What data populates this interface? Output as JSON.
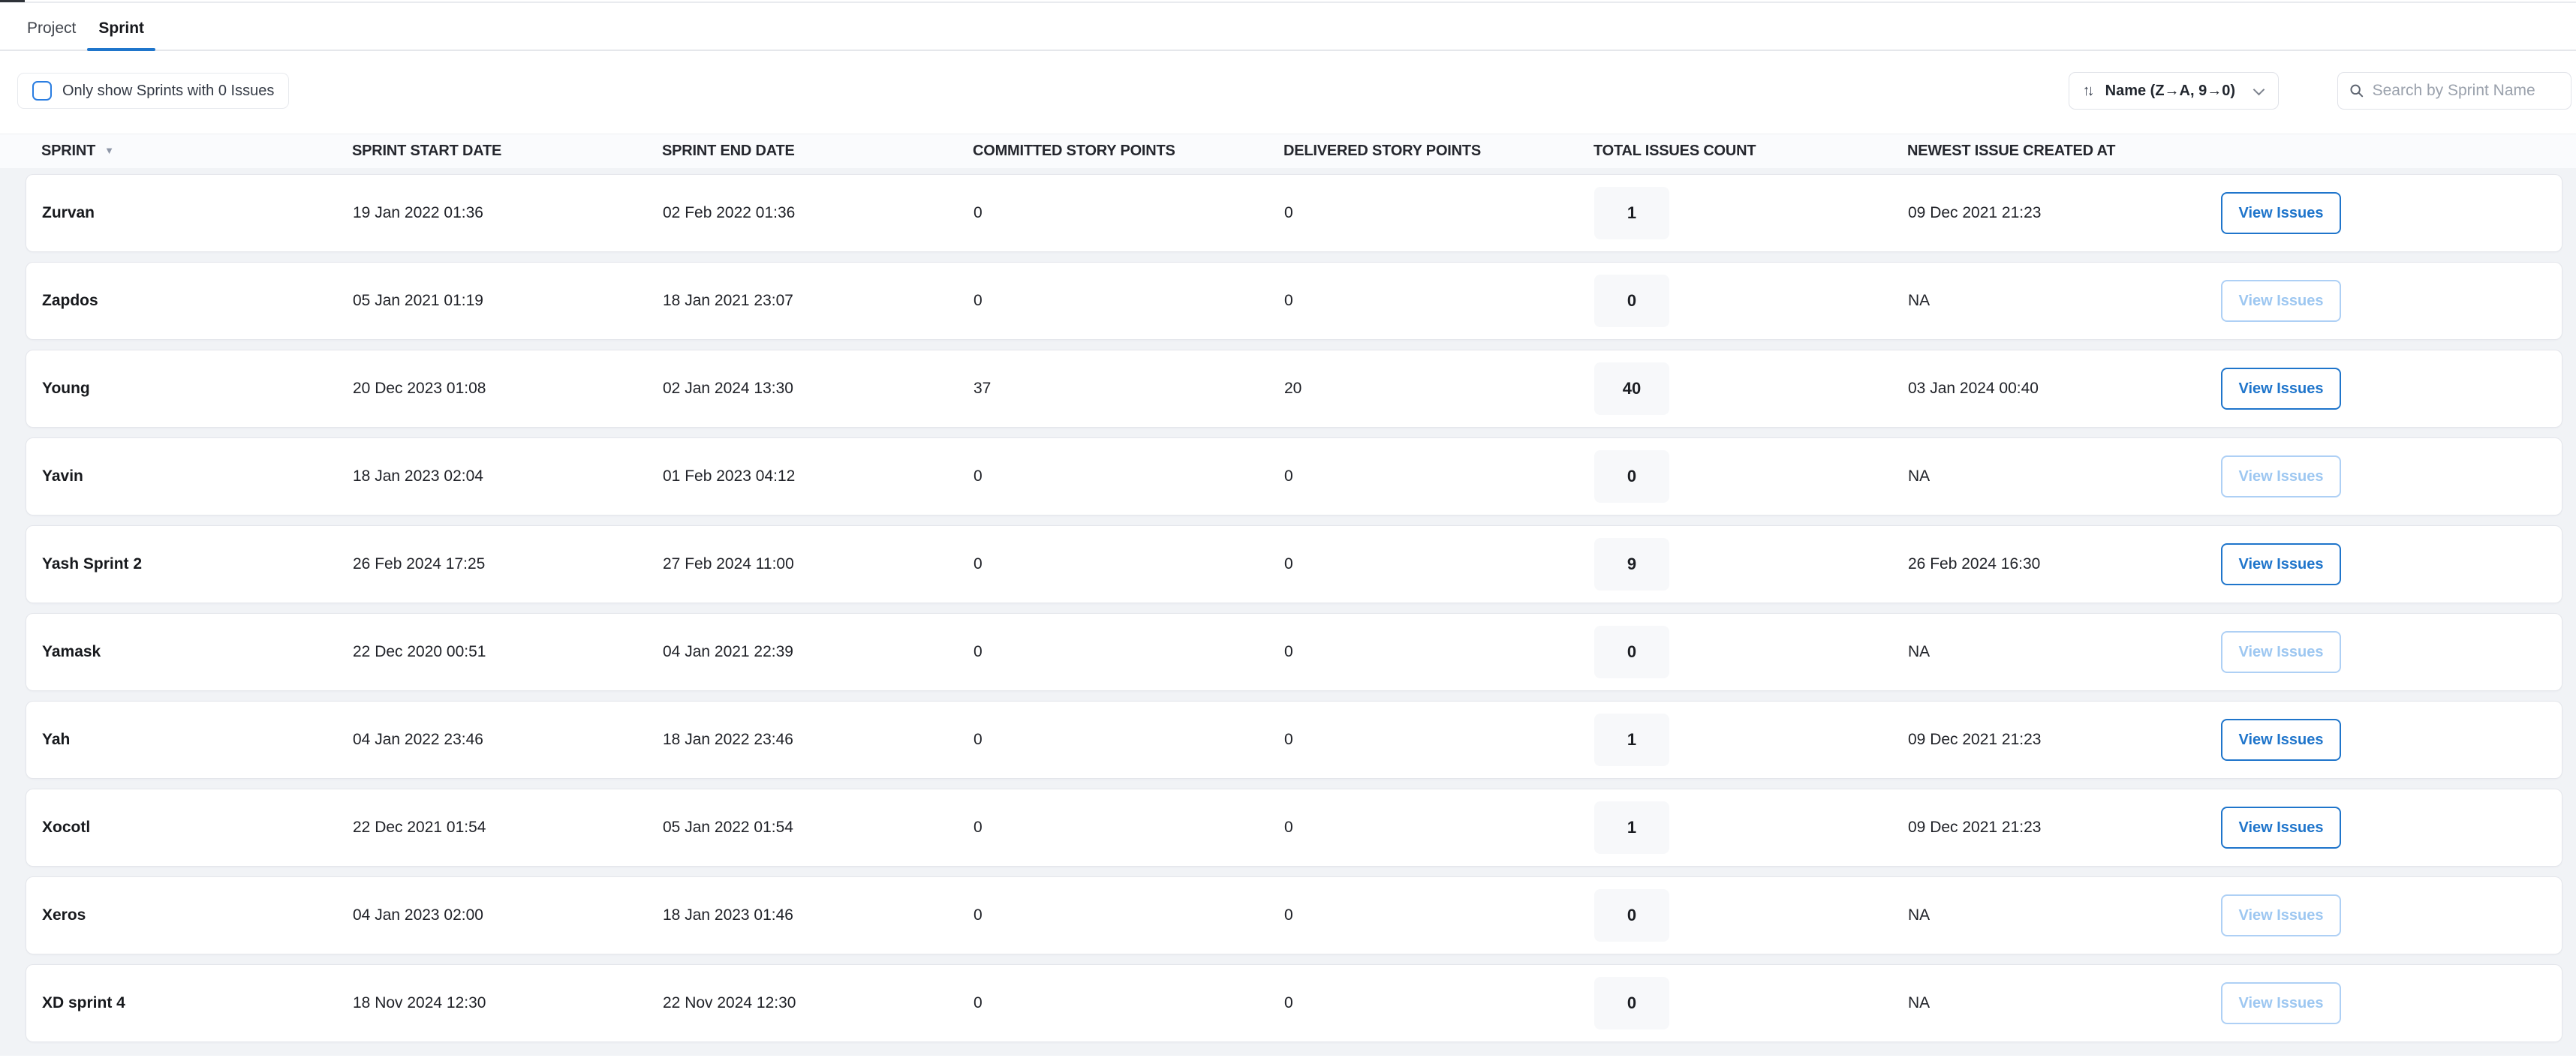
{
  "colors": {
    "accent_blue": "#1f75cb",
    "disabled_blue": "#9dc7f1",
    "section_bg": "#f1f3f6",
    "header_band_bg": "#fafbfd"
  },
  "tabs": [
    {
      "label": "Project",
      "active": false
    },
    {
      "label": "Sprint",
      "active": true
    }
  ],
  "toolbar": {
    "filter_checkbox_label": "Only show Sprints with 0 Issues",
    "filter_checked": false,
    "sort": {
      "label": "Name (Z→A, 9→0)",
      "direction_icon": "↑↓"
    },
    "search": {
      "placeholder": "Search by Sprint Name"
    }
  },
  "table": {
    "columns": [
      "SPRINT",
      "SPRINT START DATE",
      "SPRINT END DATE",
      "COMMITTED STORY POINTS",
      "DELIVERED STORY POINTS",
      "TOTAL ISSUES COUNT",
      "NEWEST ISSUE CREATED AT"
    ],
    "sort_caret": "▼",
    "action_label": "View Issues",
    "rows": [
      {
        "sprint": "Zurvan",
        "start": "19 Jan 2022 01:36",
        "end": "02 Feb 2022 01:36",
        "committed": "0",
        "delivered": "0",
        "total": "1",
        "newest": "09 Dec 2021 21:23",
        "action_enabled": true
      },
      {
        "sprint": "Zapdos",
        "start": "05 Jan 2021 01:19",
        "end": "18 Jan 2021 23:07",
        "committed": "0",
        "delivered": "0",
        "total": "0",
        "newest": "NA",
        "action_enabled": false
      },
      {
        "sprint": "Young",
        "start": "20 Dec 2023 01:08",
        "end": "02 Jan 2024 13:30",
        "committed": "37",
        "delivered": "20",
        "total": "40",
        "newest": "03 Jan 2024 00:40",
        "action_enabled": true
      },
      {
        "sprint": "Yavin",
        "start": "18 Jan 2023 02:04",
        "end": "01 Feb 2023 04:12",
        "committed": "0",
        "delivered": "0",
        "total": "0",
        "newest": "NA",
        "action_enabled": false
      },
      {
        "sprint": "Yash Sprint 2",
        "start": "26 Feb 2024 17:25",
        "end": "27 Feb 2024 11:00",
        "committed": "0",
        "delivered": "0",
        "total": "9",
        "newest": "26 Feb 2024 16:30",
        "action_enabled": true
      },
      {
        "sprint": "Yamask",
        "start": "22 Dec 2020 00:51",
        "end": "04 Jan 2021 22:39",
        "committed": "0",
        "delivered": "0",
        "total": "0",
        "newest": "NA",
        "action_enabled": false
      },
      {
        "sprint": "Yah",
        "start": "04 Jan 2022 23:46",
        "end": "18 Jan 2022 23:46",
        "committed": "0",
        "delivered": "0",
        "total": "1",
        "newest": "09 Dec 2021 21:23",
        "action_enabled": true
      },
      {
        "sprint": "Xocotl",
        "start": "22 Dec 2021 01:54",
        "end": "05 Jan 2022 01:54",
        "committed": "0",
        "delivered": "0",
        "total": "1",
        "newest": "09 Dec 2021 21:23",
        "action_enabled": true
      },
      {
        "sprint": "Xeros",
        "start": "04 Jan 2023 02:00",
        "end": "18 Jan 2023 01:46",
        "committed": "0",
        "delivered": "0",
        "total": "0",
        "newest": "NA",
        "action_enabled": false
      },
      {
        "sprint": "XD sprint 4",
        "start": "18 Nov 2024 12:30",
        "end": "22 Nov 2024 12:30",
        "committed": "0",
        "delivered": "0",
        "total": "0",
        "newest": "NA",
        "action_enabled": false
      }
    ]
  }
}
